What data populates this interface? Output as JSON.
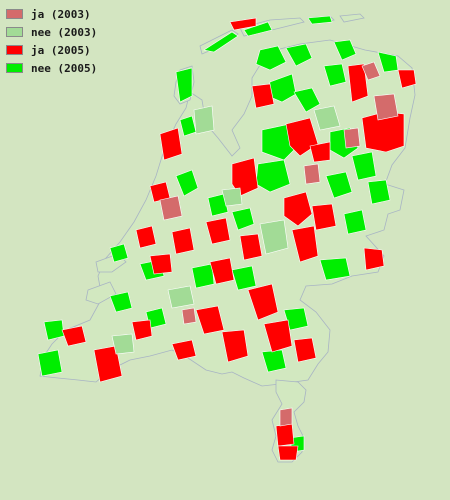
{
  "legend": {
    "items": [
      {
        "label": "ja (2003)",
        "color": "#d46b6b"
      },
      {
        "label": "nee (2003)",
        "color": "#a2db96"
      },
      {
        "label": "ja (2005)",
        "color": "#ff0000"
      },
      {
        "label": "nee (2005)",
        "color": "#00ee00"
      }
    ]
  },
  "colors": {
    "background": "#d3e5c1",
    "land": "#d2e8c0",
    "border": "#a8b4c4"
  }
}
